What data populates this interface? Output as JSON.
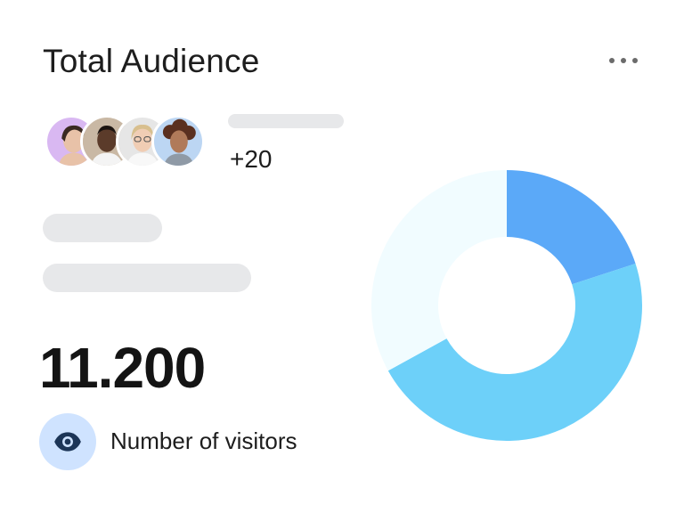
{
  "card": {
    "title": "Total Audience",
    "menu_icon": "more-horizontal-icon",
    "extra_count": "+20",
    "visitor_count": "11.200",
    "metric_label": "Number of visitors",
    "metric_icon": "eye-icon"
  },
  "avatars": [
    {
      "name": "avatar-woman-1",
      "bg": "#d9b8f2",
      "skin": "#e8c2a8",
      "hair": "#3a2a22"
    },
    {
      "name": "avatar-man",
      "bg": "#c9b8a4",
      "skin": "#5b3b2a",
      "hair": "#1c1410"
    },
    {
      "name": "avatar-woman-2",
      "bg": "#e6e6e6",
      "skin": "#f0cdb4",
      "hair": "#d8bf8e"
    },
    {
      "name": "avatar-woman-3",
      "bg": "#bcd6f3",
      "skin": "#b07a5a",
      "hair": "#5a3020"
    }
  ],
  "colors": {
    "accent": "#5aaaf8",
    "eye_bg": "#cfe3ff",
    "eye_fg": "#1c3557",
    "skeleton": "#e7e8ea"
  },
  "chart_data": {
    "type": "pie",
    "donut": true,
    "segments": [
      {
        "value": 20,
        "color": "#5ba9f8"
      },
      {
        "value": 47,
        "color": "#6dd0f9"
      },
      {
        "value": 33,
        "color": "#f1fcff"
      }
    ]
  }
}
